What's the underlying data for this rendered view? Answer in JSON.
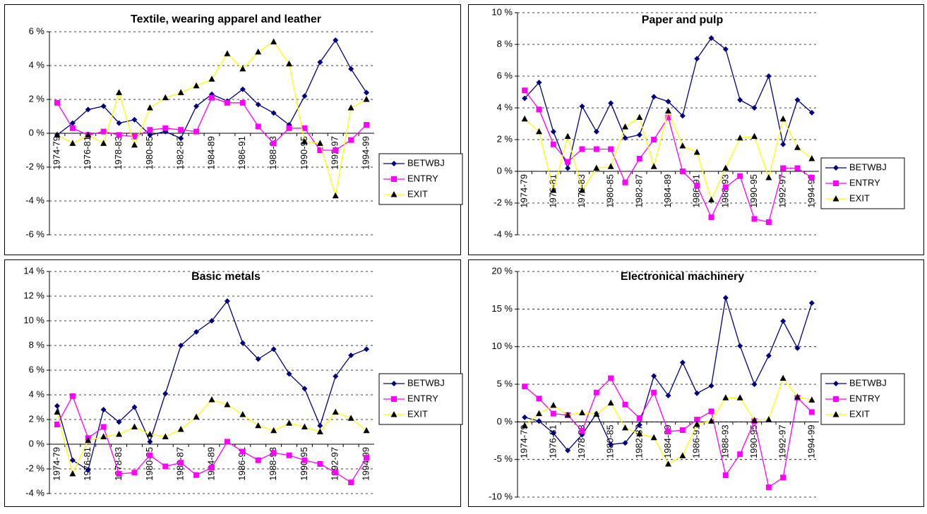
{
  "chart_data": [
    {
      "type": "line",
      "title": "Textile, wearing apparel and leather",
      "categories": [
        "1974-79",
        null,
        "1976-81",
        null,
        "1978-83",
        null,
        "1980-85",
        null,
        "1982-87",
        null,
        "1984-89",
        null,
        "1986-91",
        null,
        "1988-93",
        null,
        "1990-95",
        null,
        "1992-97",
        null,
        "1994-99"
      ],
      "ylim": [
        -6,
        6
      ],
      "yticks": [
        {
          "value": -6,
          "label": "-6 %"
        },
        {
          "value": -4,
          "label": "-4 %"
        },
        {
          "value": -2,
          "label": "-2 %"
        },
        {
          "value": 0,
          "label": "0 %"
        },
        {
          "value": 2,
          "label": "2 %"
        },
        {
          "value": 4,
          "label": "4 %"
        },
        {
          "value": 6,
          "label": "6 %"
        }
      ],
      "grid": true,
      "series": [
        {
          "name": "BETWBJ",
          "color": "#000080",
          "marker": "diamond",
          "marker_color": "#000080",
          "values": [
            -0.1,
            0.6,
            1.4,
            1.6,
            0.6,
            0.8,
            -0.1,
            0.1,
            -0.3,
            1.6,
            2.3,
            1.9,
            2.6,
            1.7,
            1.2,
            0.5,
            2.2,
            4.2,
            5.5,
            3.8,
            2.4
          ]
        },
        {
          "name": "ENTRY",
          "color": "#ff00ff",
          "marker": "square",
          "marker_color": "#ff00ff",
          "values": [
            1.8,
            0.3,
            -0.1,
            0.1,
            -0.1,
            -0.2,
            0.2,
            0.3,
            0.2,
            0.1,
            2.1,
            1.8,
            1.8,
            0.4,
            -0.6,
            0.3,
            0.3,
            -1.0,
            -1.0,
            -0.4,
            0.5
          ]
        },
        {
          "name": "EXIT",
          "color": "#ffff00",
          "marker": "triangle",
          "marker_color": "#000000",
          "values": [
            -0.1,
            -0.6,
            -0.1,
            -0.6,
            2.4,
            -0.7,
            1.5,
            2.1,
            2.4,
            2.8,
            3.2,
            4.7,
            3.8,
            4.8,
            5.4,
            4.1,
            -0.5,
            -0.6,
            -3.7,
            1.5,
            2.0
          ]
        }
      ]
    },
    {
      "type": "line",
      "title": "Paper and pulp",
      "categories": [
        "1974-79",
        null,
        "1976-81",
        null,
        "1978-83",
        null,
        "1980-85",
        null,
        "1982-87",
        null,
        "1984-89",
        null,
        "1986-91",
        null,
        "1988-93",
        null,
        "1990-95",
        null,
        "1992-97",
        null,
        "1994-99"
      ],
      "ylim": [
        -4,
        10
      ],
      "yticks": [
        {
          "value": -4,
          "label": "-4 %"
        },
        {
          "value": -2,
          "label": "-2 %"
        },
        {
          "value": 0,
          "label": "0 %"
        },
        {
          "value": 2,
          "label": "2 %"
        },
        {
          "value": 4,
          "label": "4 %"
        },
        {
          "value": 6,
          "label": "6 %"
        },
        {
          "value": 8,
          "label": "8 %"
        },
        {
          "value": 10,
          "label": "10 %"
        }
      ],
      "grid": true,
      "series": [
        {
          "name": "BETWBJ",
          "color": "#000080",
          "marker": "diamond",
          "marker_color": "#000080",
          "values": [
            4.6,
            5.6,
            2.5,
            0.2,
            4.1,
            2.5,
            4.3,
            2.1,
            2.3,
            4.7,
            4.4,
            3.5,
            7.1,
            8.4,
            7.7,
            4.5,
            4.0,
            6.0,
            1.7,
            4.5,
            3.7
          ]
        },
        {
          "name": "ENTRY",
          "color": "#ff00ff",
          "marker": "square",
          "marker_color": "#ff00ff",
          "values": [
            5.1,
            3.9,
            1.7,
            0.6,
            1.4,
            1.4,
            1.4,
            -0.7,
            0.8,
            2.0,
            3.4,
            0.0,
            -0.9,
            -2.9,
            -1.0,
            -0.3,
            -3.0,
            -3.2,
            0.2,
            0.2,
            -0.4
          ]
        },
        {
          "name": "EXIT",
          "color": "#ffff00",
          "marker": "triangle",
          "marker_color": "#000000",
          "values": [
            3.3,
            2.5,
            -1.2,
            2.2,
            -1.2,
            0.2,
            0.3,
            2.8,
            3.4,
            0.3,
            3.8,
            1.6,
            1.2,
            -1.8,
            0.2,
            2.1,
            2.2,
            -0.4,
            3.3,
            1.5,
            0.8
          ]
        }
      ]
    },
    {
      "type": "line",
      "title": "Basic metals",
      "categories": [
        "1974-79",
        null,
        "1976-81",
        null,
        "1978-83",
        null,
        "1980-85",
        null,
        "1982-87",
        null,
        "1984-89",
        null,
        "1986-91",
        null,
        "1988-93",
        null,
        "1990-95",
        null,
        "1992-97",
        null,
        "1994-99"
      ],
      "ylim": [
        -4,
        14
      ],
      "yticks": [
        {
          "value": -4,
          "label": "-4 %"
        },
        {
          "value": -2,
          "label": "-2 %"
        },
        {
          "value": 0,
          "label": "0 %"
        },
        {
          "value": 2,
          "label": "2 %"
        },
        {
          "value": 4,
          "label": "4 %"
        },
        {
          "value": 6,
          "label": "6 %"
        },
        {
          "value": 8,
          "label": "8 %"
        },
        {
          "value": 10,
          "label": "10 %"
        },
        {
          "value": 12,
          "label": "12 %"
        },
        {
          "value": 14,
          "label": "14 %"
        }
      ],
      "grid": true,
      "series": [
        {
          "name": "BETWBJ",
          "color": "#000080",
          "marker": "diamond",
          "marker_color": "#000080",
          "values": [
            3.1,
            -1.3,
            -2.1,
            2.8,
            1.8,
            3.0,
            0.2,
            4.1,
            8.0,
            9.1,
            10.0,
            11.6,
            8.2,
            6.9,
            7.7,
            5.7,
            4.5,
            1.5,
            5.5,
            7.2,
            7.7
          ]
        },
        {
          "name": "ENTRY",
          "color": "#ff00ff",
          "marker": "square",
          "marker_color": "#ff00ff",
          "values": [
            1.6,
            3.9,
            0.5,
            1.4,
            -2.4,
            -2.3,
            -0.9,
            -1.8,
            -1.5,
            -2.5,
            -1.9,
            0.2,
            -0.6,
            -1.3,
            -0.7,
            -0.9,
            -1.3,
            -1.6,
            -2.3,
            -3.1,
            -1.1
          ]
        },
        {
          "name": "EXIT",
          "color": "#ffff00",
          "marker": "triangle",
          "marker_color": "#000000",
          "values": [
            2.6,
            -2.4,
            0.3,
            0.6,
            0.8,
            1.4,
            0.8,
            0.6,
            1.2,
            2.2,
            3.6,
            3.2,
            2.4,
            1.5,
            1.1,
            1.7,
            1.4,
            1.0,
            2.6,
            2.1,
            1.1
          ]
        }
      ]
    },
    {
      "type": "line",
      "title": "Electronical machinery",
      "categories": [
        "1974-79",
        null,
        "1976-81",
        null,
        "1978-83",
        null,
        "1980-85",
        null,
        "1982-87",
        null,
        "1984-89",
        null,
        "1986-91",
        null,
        "1988-93",
        null,
        "1990-95",
        null,
        "1992-97",
        null,
        "1994-99"
      ],
      "ylim": [
        -10,
        20
      ],
      "yticks": [
        {
          "value": -10,
          "label": "-10 %"
        },
        {
          "value": -5,
          "label": "-5 %"
        },
        {
          "value": 0,
          "label": "0 %"
        },
        {
          "value": 5,
          "label": "5 %"
        },
        {
          "value": 10,
          "label": "10 %"
        },
        {
          "value": 15,
          "label": "15 %"
        },
        {
          "value": 20,
          "label": "20 %"
        }
      ],
      "grid": true,
      "series": [
        {
          "name": "BETWBJ",
          "color": "#000080",
          "marker": "diamond",
          "marker_color": "#000080",
          "values": [
            0.6,
            0.1,
            -1.5,
            -3.8,
            -1.7,
            1.1,
            -3.0,
            -2.8,
            -0.4,
            6.1,
            3.5,
            7.9,
            3.8,
            4.8,
            16.5,
            10.1,
            5.0,
            8.8,
            13.4,
            9.8,
            15.8
          ]
        },
        {
          "name": "ENTRY",
          "color": "#ff00ff",
          "marker": "square",
          "marker_color": "#ff00ff",
          "values": [
            4.7,
            3.1,
            1.1,
            0.9,
            -1.2,
            3.9,
            5.8,
            2.3,
            0.5,
            3.9,
            -1.3,
            -1.1,
            0.3,
            1.4,
            -7.1,
            -4.3,
            0.1,
            -8.7,
            -7.4,
            3.2,
            1.3
          ]
        },
        {
          "name": "EXIT",
          "color": "#ffff00",
          "marker": "triangle",
          "marker_color": "#000000",
          "values": [
            -0.5,
            1.1,
            2.2,
            0.9,
            1.2,
            1.0,
            2.5,
            -0.8,
            -1.6,
            -2.1,
            -5.6,
            -4.5,
            -0.3,
            0.1,
            3.2,
            3.2,
            0.2,
            0.3,
            5.8,
            3.3,
            2.9
          ]
        }
      ]
    }
  ]
}
